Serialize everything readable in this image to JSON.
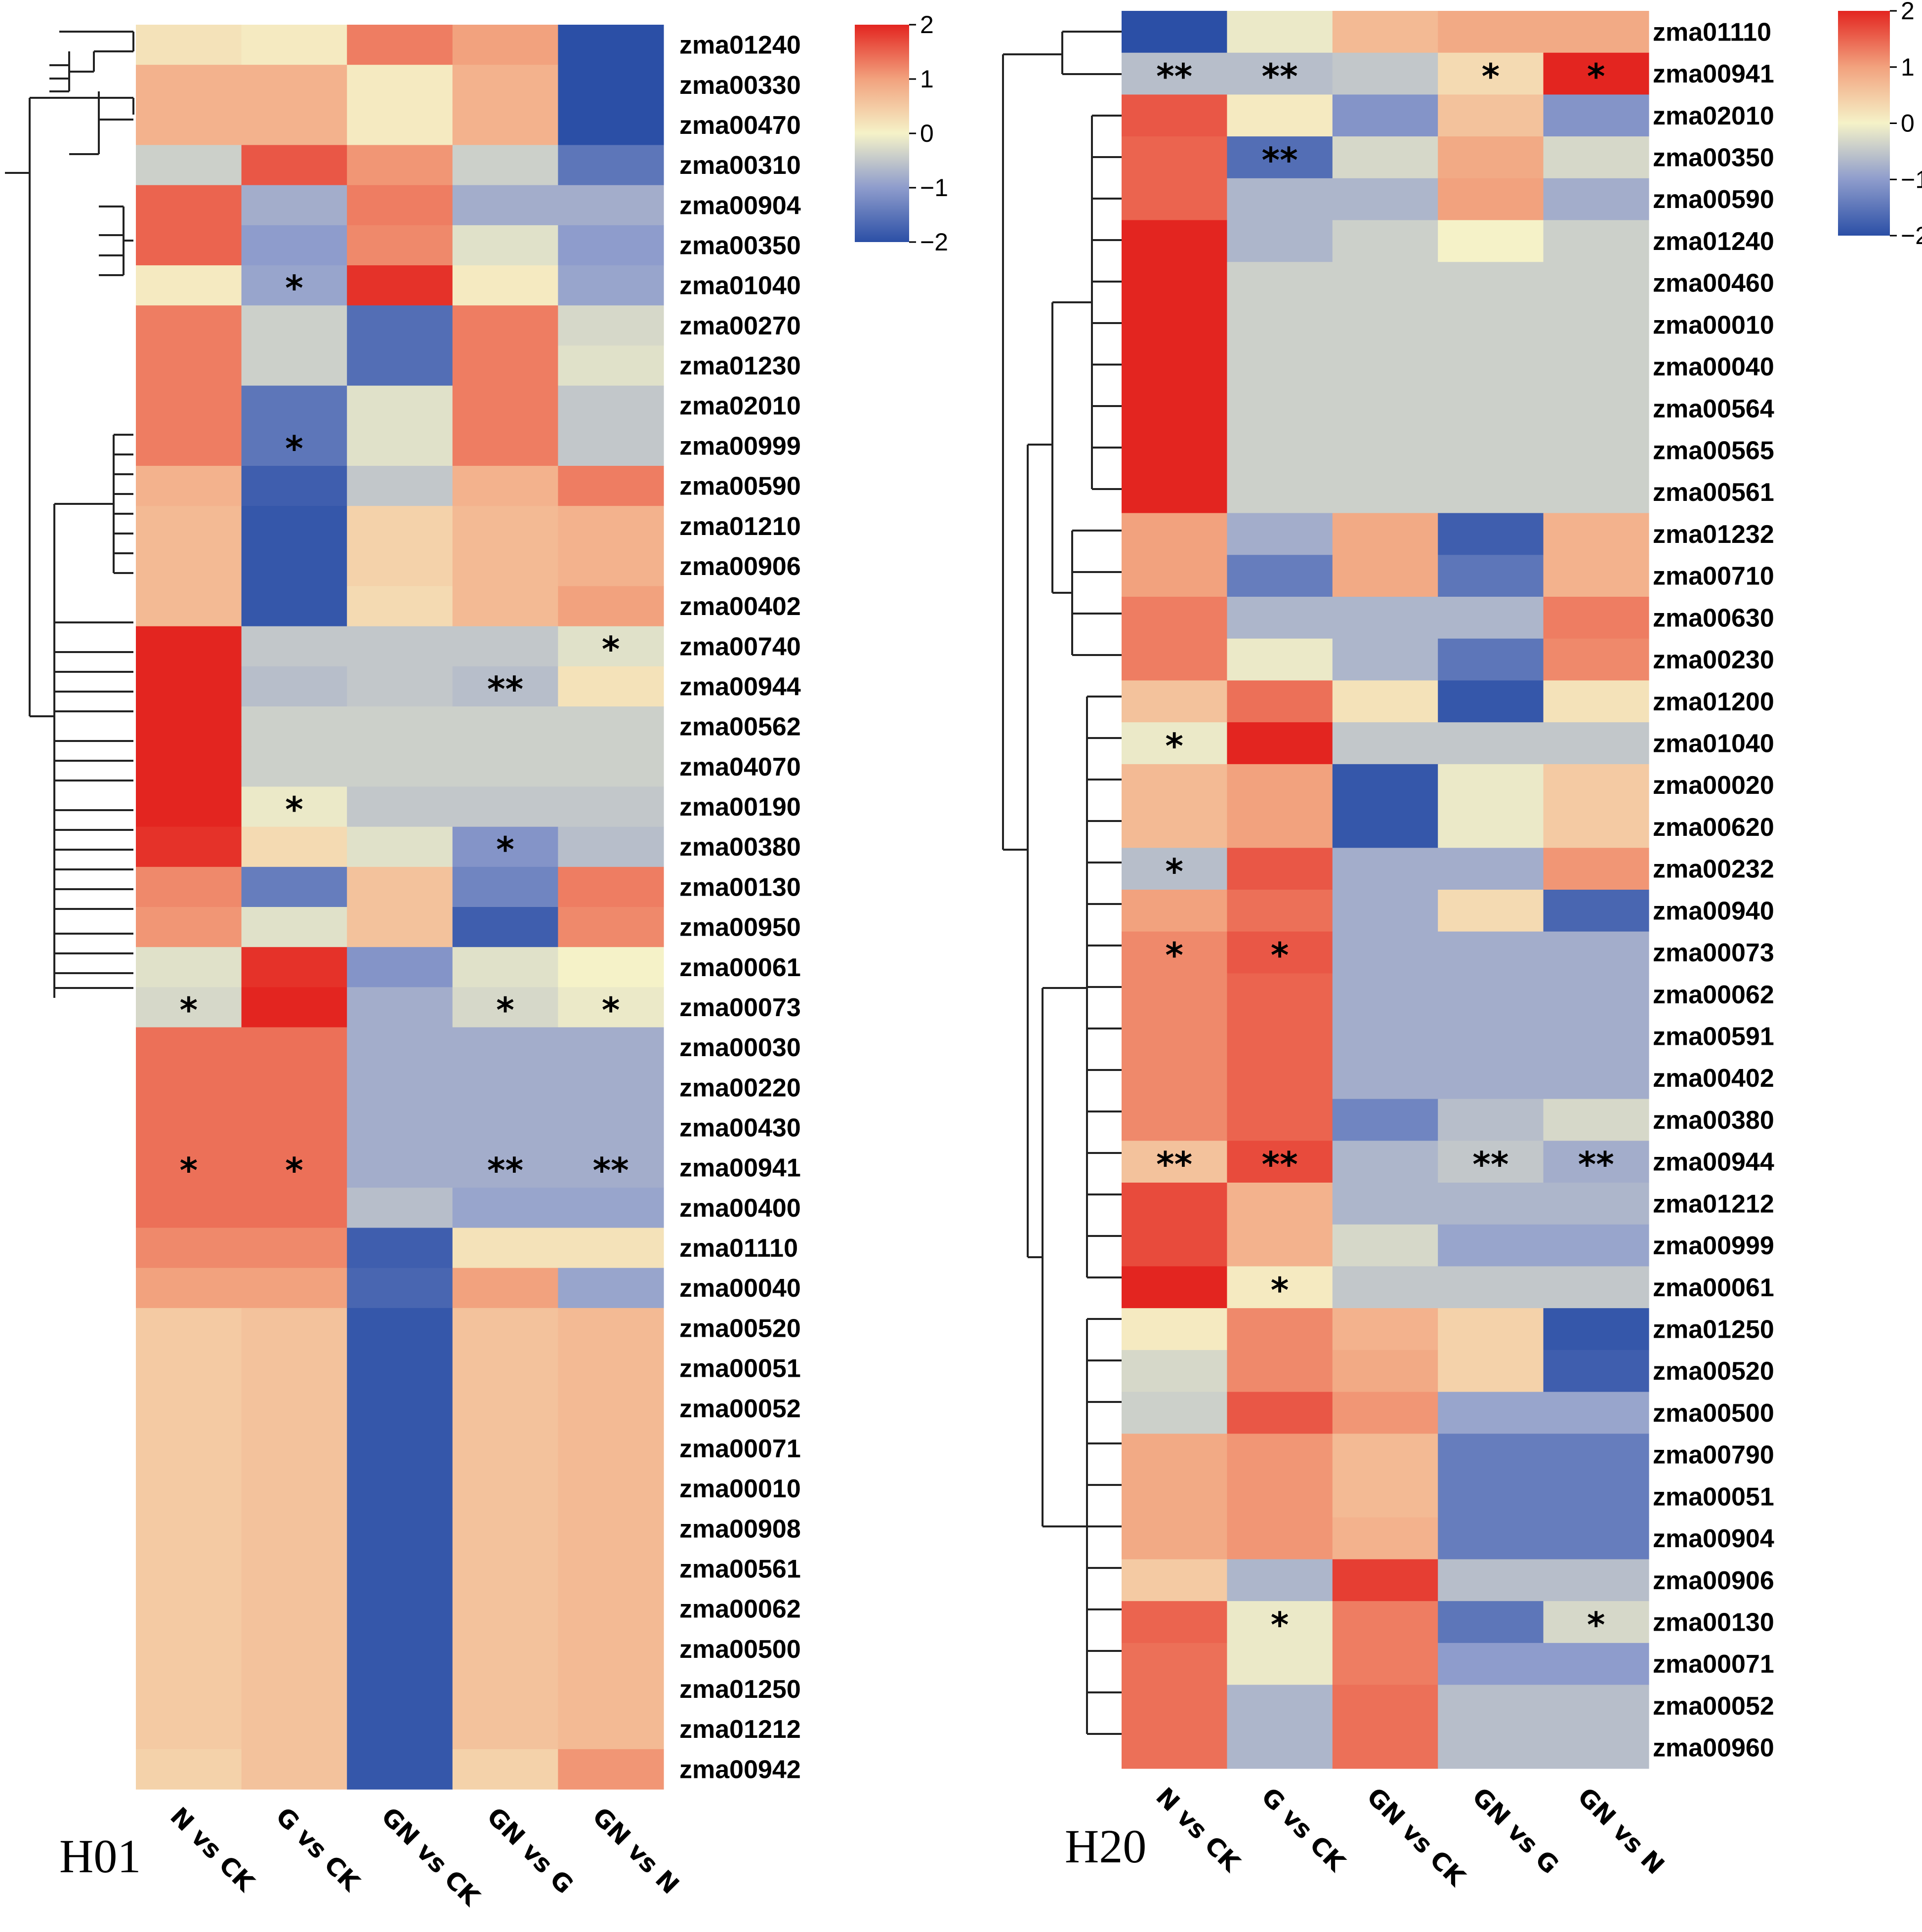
{
  "chart_data": [
    {
      "type": "heatmap",
      "panel_label": "H01",
      "columns": [
        "N vs CK",
        "G vs CK",
        "GN vs CK",
        "GN vs G",
        "GN vs N"
      ],
      "rows": [
        "zma01240",
        "zma00330",
        "zma00470",
        "zma00310",
        "zma00904",
        "zma00350",
        "zma01040",
        "zma00270",
        "zma01230",
        "zma02010",
        "zma00999",
        "zma00590",
        "zma01210",
        "zma00906",
        "zma00402",
        "zma00740",
        "zma00944",
        "zma00562",
        "zma04070",
        "zma00190",
        "zma00380",
        "zma00130",
        "zma00950",
        "zma00061",
        "zma00073",
        "zma00030",
        "zma00220",
        "zma00430",
        "zma00941",
        "zma00400",
        "zma01110",
        "zma00040",
        "zma00520",
        "zma00051",
        "zma00052",
        "zma00071",
        "zma00010",
        "zma00908",
        "zma00561",
        "zma00062",
        "zma00500",
        "zma01250",
        "zma01212",
        "zma00942"
      ],
      "values": [
        [
          0.2,
          0.1,
          1.3,
          1.0,
          -2.0
        ],
        [
          0.8,
          0.8,
          0.1,
          0.8,
          -2.0
        ],
        [
          0.8,
          0.8,
          0.1,
          0.8,
          -2.0
        ],
        [
          -0.4,
          1.6,
          1.1,
          -0.4,
          -1.5
        ],
        [
          1.5,
          -0.8,
          1.3,
          -0.8,
          -0.8
        ],
        [
          1.5,
          -1.0,
          1.2,
          -0.2,
          -1.0
        ],
        [
          0.1,
          -0.9,
          1.9,
          0.1,
          -0.9
        ],
        [
          1.3,
          -0.4,
          -1.6,
          1.3,
          -0.3
        ],
        [
          1.3,
          -0.4,
          -1.6,
          1.3,
          -0.2
        ],
        [
          1.3,
          -1.5,
          -0.2,
          1.3,
          -0.5
        ],
        [
          1.3,
          -1.5,
          -0.2,
          1.3,
          -0.5
        ],
        [
          0.8,
          -1.8,
          -0.5,
          0.8,
          1.3
        ],
        [
          0.7,
          -1.9,
          0.4,
          0.7,
          0.8
        ],
        [
          0.7,
          -1.9,
          0.4,
          0.7,
          0.8
        ],
        [
          0.7,
          -1.9,
          0.3,
          0.7,
          1.0
        ],
        [
          2.0,
          -0.5,
          -0.5,
          -0.5,
          -0.2
        ],
        [
          2.0,
          -0.6,
          -0.5,
          -0.6,
          0.2
        ],
        [
          2.0,
          -0.4,
          -0.4,
          -0.4,
          -0.4
        ],
        [
          2.0,
          -0.4,
          -0.4,
          -0.4,
          -0.4
        ],
        [
          2.0,
          -0.1,
          -0.5,
          -0.5,
          -0.5
        ],
        [
          1.9,
          0.3,
          -0.2,
          -1.1,
          -0.6
        ],
        [
          1.2,
          -1.4,
          0.6,
          -1.3,
          1.3
        ],
        [
          1.1,
          -0.2,
          0.6,
          -1.8,
          1.2
        ],
        [
          -0.2,
          1.9,
          -1.1,
          -0.2,
          0.0
        ],
        [
          -0.3,
          2.0,
          -0.8,
          -0.3,
          -0.1
        ],
        [
          1.4,
          1.4,
          -0.8,
          -0.8,
          -0.8
        ],
        [
          1.4,
          1.4,
          -0.8,
          -0.8,
          -0.8
        ],
        [
          1.4,
          1.4,
          -0.8,
          -0.8,
          -0.8
        ],
        [
          1.4,
          1.4,
          -0.8,
          -0.8,
          -0.8
        ],
        [
          1.4,
          1.4,
          -0.6,
          -0.9,
          -0.9
        ],
        [
          1.2,
          1.2,
          -1.8,
          0.2,
          0.2
        ],
        [
          1.0,
          1.0,
          -1.7,
          1.0,
          -0.9
        ],
        [
          0.5,
          0.6,
          -1.9,
          0.6,
          0.7
        ],
        [
          0.5,
          0.6,
          -1.9,
          0.6,
          0.7
        ],
        [
          0.5,
          0.6,
          -1.9,
          0.6,
          0.7
        ],
        [
          0.5,
          0.6,
          -1.9,
          0.6,
          0.7
        ],
        [
          0.5,
          0.6,
          -1.9,
          0.6,
          0.7
        ],
        [
          0.5,
          0.6,
          -1.9,
          0.6,
          0.7
        ],
        [
          0.5,
          0.6,
          -1.9,
          0.6,
          0.7
        ],
        [
          0.5,
          0.6,
          -1.9,
          0.6,
          0.7
        ],
        [
          0.5,
          0.6,
          -1.9,
          0.6,
          0.7
        ],
        [
          0.5,
          0.6,
          -1.9,
          0.6,
          0.7
        ],
        [
          0.5,
          0.6,
          -1.9,
          0.6,
          0.7
        ],
        [
          0.4,
          0.6,
          -1.9,
          0.4,
          1.1
        ]
      ],
      "significance": [
        [
          "",
          "",
          "",
          "",
          ""
        ],
        [
          "",
          "",
          "",
          "",
          ""
        ],
        [
          "",
          "",
          "",
          "",
          ""
        ],
        [
          "",
          "",
          "",
          "",
          ""
        ],
        [
          "",
          "",
          "",
          "",
          ""
        ],
        [
          "",
          "",
          "",
          "",
          ""
        ],
        [
          "",
          "*",
          "",
          "",
          ""
        ],
        [
          "",
          "",
          "",
          "",
          ""
        ],
        [
          "",
          "",
          "",
          "",
          ""
        ],
        [
          "",
          "",
          "",
          "",
          ""
        ],
        [
          "",
          "*",
          "",
          "",
          ""
        ],
        [
          "",
          "",
          "",
          "",
          ""
        ],
        [
          "",
          "",
          "",
          "",
          ""
        ],
        [
          "",
          "",
          "",
          "",
          ""
        ],
        [
          "",
          "",
          "",
          "",
          ""
        ],
        [
          "",
          "",
          "",
          "",
          "*"
        ],
        [
          "",
          "",
          "",
          "**",
          ""
        ],
        [
          "",
          "",
          "",
          "",
          ""
        ],
        [
          "",
          "",
          "",
          "",
          ""
        ],
        [
          "",
          "*",
          "",
          "",
          ""
        ],
        [
          "",
          "",
          "",
          "*",
          ""
        ],
        [
          "",
          "",
          "",
          "",
          ""
        ],
        [
          "",
          "",
          "",
          "",
          ""
        ],
        [
          "",
          "",
          "",
          "",
          ""
        ],
        [
          "*",
          "",
          "",
          "*",
          "*"
        ],
        [
          "",
          "",
          "",
          "",
          ""
        ],
        [
          "",
          "",
          "",
          "",
          ""
        ],
        [
          "",
          "",
          "",
          "",
          ""
        ],
        [
          "*",
          "*",
          "",
          "**",
          "**"
        ],
        [
          "",
          "",
          "",
          "",
          ""
        ],
        [
          "",
          "",
          "",
          "",
          ""
        ],
        [
          "",
          "",
          "",
          "",
          ""
        ],
        [
          "",
          "",
          "",
          "",
          ""
        ],
        [
          "",
          "",
          "",
          "",
          ""
        ],
        [
          "",
          "",
          "",
          "",
          ""
        ],
        [
          "",
          "",
          "",
          "",
          ""
        ],
        [
          "",
          "",
          "",
          "",
          ""
        ],
        [
          "",
          "",
          "",
          "",
          ""
        ],
        [
          "",
          "",
          "",
          "",
          ""
        ],
        [
          "",
          "",
          "",
          "",
          ""
        ],
        [
          "",
          "",
          "",
          "",
          ""
        ],
        [
          "",
          "",
          "",
          "",
          ""
        ],
        [
          "",
          "",
          "",
          "",
          ""
        ],
        [
          "",
          "",
          "",
          "",
          ""
        ]
      ],
      "colorbar": {
        "ticks": [
          2,
          1,
          0,
          -1,
          -2
        ],
        "tick_labels": [
          "2",
          "1",
          "0",
          "−1",
          "−2"
        ],
        "vmin": -2,
        "vmax": 2
      },
      "dendrogram_side": "left"
    },
    {
      "type": "heatmap",
      "panel_label": "H20",
      "columns": [
        "N vs CK",
        "G vs CK",
        "GN vs CK",
        "GN vs G",
        "GN vs N"
      ],
      "rows": [
        "zma01110",
        "zma00941",
        "zma02010",
        "zma00350",
        "zma00590",
        "zma01240",
        "zma00460",
        "zma00010",
        "zma00040",
        "zma00564",
        "zma00565",
        "zma00561",
        "zma01232",
        "zma00710",
        "zma00630",
        "zma00230",
        "zma01200",
        "zma01040",
        "zma00020",
        "zma00620",
        "zma00232",
        "zma00940",
        "zma00073",
        "zma00062",
        "zma00591",
        "zma00402",
        "zma00380",
        "zma00944",
        "zma01212",
        "zma00999",
        "zma00061",
        "zma01250",
        "zma00520",
        "zma00500",
        "zma00790",
        "zma00051",
        "zma00904",
        "zma00906",
        "zma00130",
        "zma00071",
        "zma00052",
        "zma00960"
      ],
      "values": [
        [
          -2.0,
          -0.1,
          0.7,
          0.9,
          0.9
        ],
        [
          -0.6,
          -0.6,
          -0.5,
          0.3,
          2.0
        ],
        [
          1.6,
          0.1,
          -1.1,
          0.6,
          -1.1
        ],
        [
          1.5,
          -1.6,
          -0.3,
          0.9,
          -0.3
        ],
        [
          1.5,
          -0.7,
          -0.7,
          1.0,
          -0.8
        ],
        [
          2.0,
          -0.7,
          -0.4,
          0.0,
          -0.4
        ],
        [
          2.0,
          -0.4,
          -0.4,
          -0.4,
          -0.4
        ],
        [
          2.0,
          -0.4,
          -0.4,
          -0.4,
          -0.4
        ],
        [
          2.0,
          -0.4,
          -0.4,
          -0.4,
          -0.4
        ],
        [
          2.0,
          -0.4,
          -0.4,
          -0.4,
          -0.4
        ],
        [
          2.0,
          -0.4,
          -0.4,
          -0.4,
          -0.4
        ],
        [
          2.0,
          -0.4,
          -0.4,
          -0.4,
          -0.4
        ],
        [
          1.0,
          -0.8,
          0.9,
          -1.8,
          0.8
        ],
        [
          1.0,
          -1.4,
          0.9,
          -1.5,
          0.8
        ],
        [
          1.3,
          -0.7,
          -0.7,
          -0.7,
          1.3
        ],
        [
          1.3,
          -0.1,
          -0.7,
          -1.5,
          1.2
        ],
        [
          0.6,
          1.4,
          0.2,
          -1.9,
          0.2
        ],
        [
          -0.1,
          2.0,
          -0.5,
          -0.5,
          -0.5
        ],
        [
          0.7,
          1.0,
          -1.9,
          -0.1,
          0.5
        ],
        [
          0.7,
          1.0,
          -1.9,
          -0.1,
          0.5
        ],
        [
          -0.6,
          1.6,
          -0.8,
          -0.8,
          1.1
        ],
        [
          1.0,
          1.4,
          -0.8,
          0.3,
          -1.7
        ],
        [
          1.2,
          1.6,
          -0.8,
          -0.8,
          -0.8
        ],
        [
          1.2,
          1.5,
          -0.8,
          -0.8,
          -0.8
        ],
        [
          1.2,
          1.5,
          -0.8,
          -0.8,
          -0.8
        ],
        [
          1.2,
          1.5,
          -0.8,
          -0.8,
          -0.8
        ],
        [
          1.2,
          1.5,
          -1.3,
          -0.6,
          -0.3
        ],
        [
          0.6,
          1.7,
          -0.7,
          -0.5,
          -0.8
        ],
        [
          1.7,
          0.8,
          -0.7,
          -0.7,
          -0.7
        ],
        [
          1.7,
          0.8,
          -0.3,
          -0.9,
          -0.9
        ],
        [
          2.0,
          0.1,
          -0.5,
          -0.5,
          -0.5
        ],
        [
          0.1,
          1.2,
          0.8,
          0.4,
          -1.9
        ],
        [
          -0.3,
          1.2,
          0.9,
          0.4,
          -1.8
        ],
        [
          -0.4,
          1.6,
          1.1,
          -0.9,
          -0.9
        ],
        [
          0.9,
          1.1,
          0.7,
          -1.4,
          -1.4
        ],
        [
          0.9,
          1.1,
          0.7,
          -1.4,
          -1.4
        ],
        [
          0.9,
          1.1,
          0.8,
          -1.4,
          -1.4
        ],
        [
          0.5,
          -0.7,
          1.8,
          -0.6,
          -0.6
        ],
        [
          1.5,
          -0.1,
          1.3,
          -1.5,
          -0.3
        ],
        [
          1.4,
          -0.1,
          1.3,
          -1.0,
          -1.0
        ],
        [
          1.4,
          -0.7,
          1.4,
          -0.6,
          -0.6
        ],
        [
          1.4,
          -0.7,
          1.4,
          -0.6,
          -0.6
        ]
      ],
      "significance": [
        [
          "",
          "",
          "",
          "",
          ""
        ],
        [
          "**",
          "**",
          "",
          "*",
          "*"
        ],
        [
          "",
          "",
          "",
          "",
          ""
        ],
        [
          "",
          "**",
          "",
          "",
          ""
        ],
        [
          "",
          "",
          "",
          "",
          ""
        ],
        [
          "",
          "",
          "",
          "",
          ""
        ],
        [
          "",
          "",
          "",
          "",
          ""
        ],
        [
          "",
          "",
          "",
          "",
          ""
        ],
        [
          "",
          "",
          "",
          "",
          ""
        ],
        [
          "",
          "",
          "",
          "",
          ""
        ],
        [
          "",
          "",
          "",
          "",
          ""
        ],
        [
          "",
          "",
          "",
          "",
          ""
        ],
        [
          "",
          "",
          "",
          "",
          ""
        ],
        [
          "",
          "",
          "",
          "",
          ""
        ],
        [
          "",
          "",
          "",
          "",
          ""
        ],
        [
          "",
          "",
          "",
          "",
          ""
        ],
        [
          "",
          "",
          "",
          "",
          ""
        ],
        [
          "*",
          "",
          "",
          "",
          ""
        ],
        [
          "",
          "",
          "",
          "",
          ""
        ],
        [
          "",
          "",
          "",
          "",
          ""
        ],
        [
          "*",
          "",
          "",
          "",
          ""
        ],
        [
          "",
          "",
          "",
          "",
          ""
        ],
        [
          "*",
          "*",
          "",
          "",
          ""
        ],
        [
          "",
          "",
          "",
          "",
          ""
        ],
        [
          "",
          "",
          "",
          "",
          ""
        ],
        [
          "",
          "",
          "",
          "",
          ""
        ],
        [
          "",
          "",
          "",
          "",
          ""
        ],
        [
          "**",
          "**",
          "",
          "**",
          "**"
        ],
        [
          "",
          "",
          "",
          "",
          ""
        ],
        [
          "",
          "",
          "",
          "",
          ""
        ],
        [
          "",
          "*",
          "",
          "",
          ""
        ],
        [
          "",
          "",
          "",
          "",
          ""
        ],
        [
          "",
          "",
          "",
          "",
          ""
        ],
        [
          "",
          "",
          "",
          "",
          ""
        ],
        [
          "",
          "",
          "",
          "",
          ""
        ],
        [
          "",
          "",
          "",
          "",
          ""
        ],
        [
          "",
          "",
          "",
          "",
          ""
        ],
        [
          "",
          "",
          "",
          "",
          ""
        ],
        [
          "",
          "*",
          "",
          "",
          "*"
        ],
        [
          "",
          "",
          "",
          "",
          ""
        ],
        [
          "",
          "",
          "",
          "",
          ""
        ],
        [
          "",
          "",
          "",
          "",
          ""
        ]
      ],
      "colorbar": {
        "ticks": [
          2,
          1,
          0,
          -1,
          -2
        ],
        "tick_labels": [
          "2",
          "1",
          "0",
          "−1",
          "−2"
        ],
        "vmin": -2,
        "vmax": 2
      },
      "dendrogram_side": "left"
    }
  ],
  "colors": {
    "low": "#2b4fa6",
    "low_mid": "#8e9ccc",
    "mid": "#f5f2c8",
    "high_mid": "#f2a27e",
    "high": "#e32520"
  }
}
